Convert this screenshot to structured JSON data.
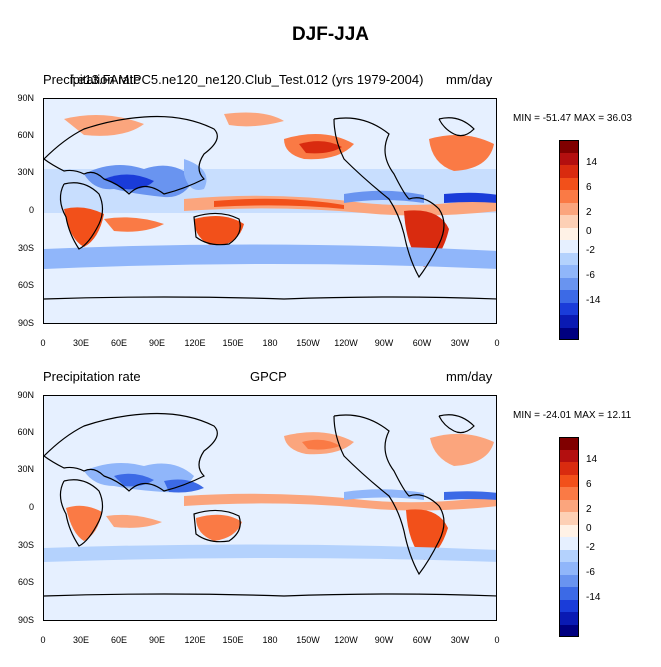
{
  "title": "DJF-JJA",
  "colorbar": {
    "colors": [
      "#800000",
      "#b30f0f",
      "#d92b0f",
      "#f2501a",
      "#fa7a45",
      "#fba57d",
      "#fdd0b5",
      "#fff2e6",
      "#e6f0ff",
      "#b4d2fd",
      "#90b6fa",
      "#6994f0",
      "#3c6ae6",
      "#1a3cd9",
      "#0a1ab3",
      "#000080"
    ],
    "labels": [
      "14",
      "6",
      "2",
      "0",
      "-2",
      "-6",
      "-14"
    ]
  },
  "axes": {
    "yticks": [
      "90N",
      "60N",
      "30N",
      "0",
      "30S",
      "60S",
      "90S"
    ],
    "xticks": [
      "0",
      "30E",
      "60E",
      "90E",
      "120E",
      "150E",
      "180",
      "150W",
      "120W",
      "90W",
      "60W",
      "30W",
      "0"
    ]
  },
  "panels": [
    {
      "left_label": "Precipitation rate",
      "center_label": "f.e13.FAMIPC5.ne120_ne120.Club_Test.012 (yrs 1979-2004)",
      "right_label": "mm/day",
      "minmax": "MIN = -51.47 MAX =  36.03"
    },
    {
      "left_label": "Precipitation rate",
      "center_label": "GPCP",
      "right_label": "mm/day",
      "minmax": "MIN = -24.01 MAX =  12.11"
    }
  ]
}
